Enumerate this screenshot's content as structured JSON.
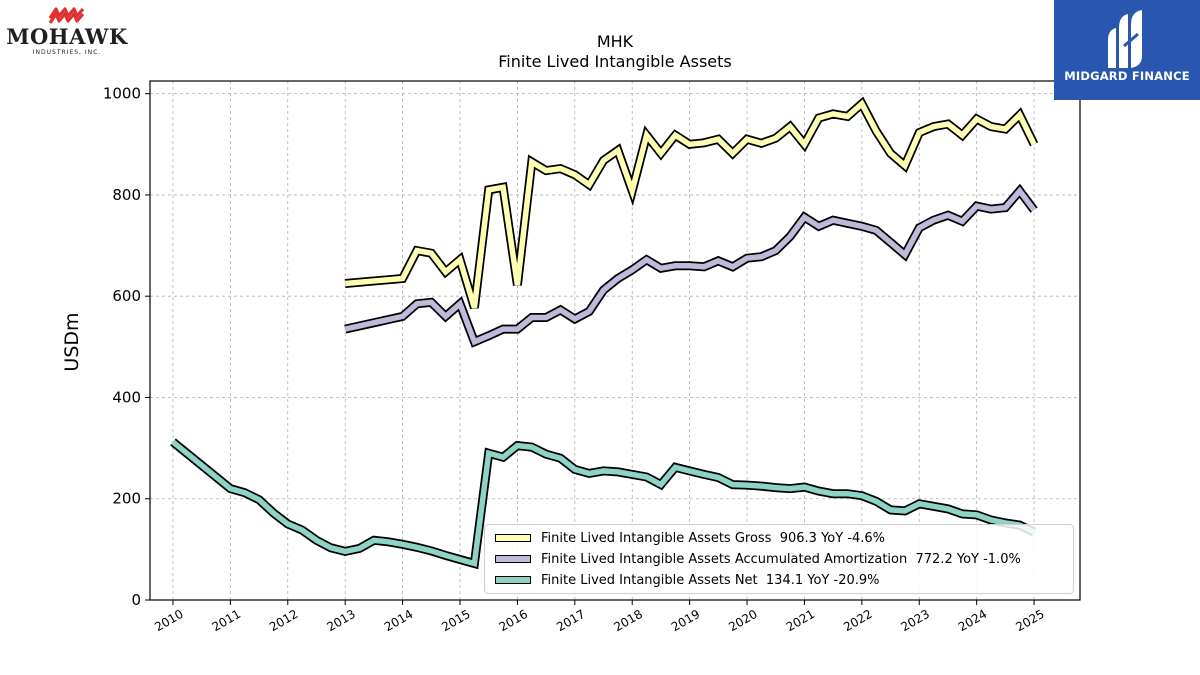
{
  "branding": {
    "company_logo_text": "MOHAWK",
    "company_logo_subtext": "INDUSTRIES, INC.",
    "provider_logo_text": "MIDGARD FINANCE"
  },
  "chart_data": {
    "type": "line",
    "title": "MHK",
    "subtitle": "Finite Lived Intangible Assets",
    "xlabel": "",
    "ylabel": "USDm",
    "xlim": [
      2009.6,
      2025.8
    ],
    "ylim": [
      0,
      1025
    ],
    "x_ticks": [
      2010,
      2011,
      2012,
      2013,
      2014,
      2015,
      2016,
      2017,
      2018,
      2019,
      2020,
      2021,
      2022,
      2023,
      2024,
      2025
    ],
    "y_ticks": [
      0,
      200,
      400,
      600,
      800,
      1000
    ],
    "grid": true,
    "legend_position": "lower-right",
    "series": [
      {
        "name": "Finite Lived Intangible Assets Gross",
        "legend_label": "Finite Lived Intangible Assets Gross  906.3 YoY -4.6%",
        "color": "#ffffb3",
        "points": [
          [
            2013.0,
            625
          ],
          [
            2014.0,
            635
          ],
          [
            2014.25,
            690
          ],
          [
            2014.5,
            685
          ],
          [
            2014.75,
            648
          ],
          [
            2015.0,
            672
          ],
          [
            2015.25,
            577
          ],
          [
            2015.5,
            810
          ],
          [
            2015.75,
            815
          ],
          [
            2016.0,
            622
          ],
          [
            2016.25,
            865
          ],
          [
            2016.5,
            848
          ],
          [
            2016.75,
            852
          ],
          [
            2017.0,
            840
          ],
          [
            2017.25,
            820
          ],
          [
            2017.5,
            868
          ],
          [
            2017.75,
            888
          ],
          [
            2018.0,
            808
          ],
          [
            2018.25,
            918
          ],
          [
            2018.5,
            882
          ],
          [
            2018.75,
            918
          ],
          [
            2019.0,
            900
          ],
          [
            2019.25,
            903
          ],
          [
            2019.5,
            910
          ],
          [
            2019.75,
            882
          ],
          [
            2020.0,
            910
          ],
          [
            2020.25,
            902
          ],
          [
            2020.5,
            912
          ],
          [
            2020.75,
            935
          ],
          [
            2021.0,
            900
          ],
          [
            2021.25,
            952
          ],
          [
            2021.5,
            960
          ],
          [
            2021.75,
            955
          ],
          [
            2022.0,
            980
          ],
          [
            2022.25,
            926
          ],
          [
            2022.5,
            882
          ],
          [
            2022.75,
            858
          ],
          [
            2023.0,
            923
          ],
          [
            2023.25,
            935
          ],
          [
            2023.5,
            940
          ],
          [
            2023.75,
            918
          ],
          [
            2024.0,
            950
          ],
          [
            2024.25,
            935
          ],
          [
            2024.5,
            930
          ],
          [
            2024.75,
            958
          ],
          [
            2025.0,
            900
          ]
        ]
      },
      {
        "name": "Finite Lived Intangible Assets Accumulated Amortization",
        "legend_label": "Finite Lived Intangible Assets Accumulated Amortization  772.2 YoY -1.0%",
        "color": "#bebada",
        "points": [
          [
            2013.0,
            535
          ],
          [
            2014.0,
            560
          ],
          [
            2014.25,
            585
          ],
          [
            2014.5,
            588
          ],
          [
            2014.75,
            560
          ],
          [
            2015.0,
            585
          ],
          [
            2015.25,
            510
          ],
          [
            2015.5,
            522
          ],
          [
            2015.75,
            535
          ],
          [
            2016.0,
            535
          ],
          [
            2016.25,
            558
          ],
          [
            2016.5,
            558
          ],
          [
            2016.75,
            573
          ],
          [
            2017.0,
            555
          ],
          [
            2017.25,
            570
          ],
          [
            2017.5,
            612
          ],
          [
            2017.75,
            635
          ],
          [
            2018.0,
            652
          ],
          [
            2018.25,
            672
          ],
          [
            2018.5,
            655
          ],
          [
            2018.75,
            660
          ],
          [
            2019.0,
            660
          ],
          [
            2019.25,
            658
          ],
          [
            2019.5,
            670
          ],
          [
            2019.75,
            658
          ],
          [
            2020.0,
            675
          ],
          [
            2020.25,
            678
          ],
          [
            2020.5,
            690
          ],
          [
            2020.75,
            718
          ],
          [
            2021.0,
            756
          ],
          [
            2021.25,
            738
          ],
          [
            2021.5,
            750
          ],
          [
            2021.75,
            744
          ],
          [
            2022.0,
            738
          ],
          [
            2022.25,
            730
          ],
          [
            2022.5,
            706
          ],
          [
            2022.75,
            682
          ],
          [
            2023.0,
            735
          ],
          [
            2023.25,
            750
          ],
          [
            2023.5,
            760
          ],
          [
            2023.75,
            748
          ],
          [
            2024.0,
            778
          ],
          [
            2024.25,
            772
          ],
          [
            2024.5,
            775
          ],
          [
            2024.75,
            808
          ],
          [
            2025.0,
            770
          ]
        ]
      },
      {
        "name": "Finite Lived Intangible Assets Net",
        "legend_label": "Finite Lived Intangible Assets Net  134.1 YoY -20.9%",
        "color": "#8dd3c7",
        "points": [
          [
            2010.0,
            312
          ],
          [
            2011.0,
            220
          ],
          [
            2011.25,
            212
          ],
          [
            2011.5,
            198
          ],
          [
            2011.75,
            172
          ],
          [
            2012.0,
            150
          ],
          [
            2012.25,
            138
          ],
          [
            2012.5,
            118
          ],
          [
            2012.75,
            103
          ],
          [
            2013.0,
            96
          ],
          [
            2013.25,
            102
          ],
          [
            2013.5,
            118
          ],
          [
            2013.75,
            115
          ],
          [
            2014.0,
            110
          ],
          [
            2014.25,
            104
          ],
          [
            2014.5,
            97
          ],
          [
            2014.75,
            88
          ],
          [
            2015.0,
            80
          ],
          [
            2015.25,
            72
          ],
          [
            2015.5,
            290
          ],
          [
            2015.75,
            282
          ],
          [
            2016.0,
            305
          ],
          [
            2016.25,
            302
          ],
          [
            2016.5,
            288
          ],
          [
            2016.75,
            280
          ],
          [
            2017.0,
            258
          ],
          [
            2017.25,
            250
          ],
          [
            2017.5,
            255
          ],
          [
            2017.75,
            253
          ],
          [
            2018.0,
            248
          ],
          [
            2018.25,
            243
          ],
          [
            2018.5,
            228
          ],
          [
            2018.75,
            262
          ],
          [
            2019.0,
            255
          ],
          [
            2019.25,
            248
          ],
          [
            2019.5,
            242
          ],
          [
            2019.75,
            228
          ],
          [
            2020.0,
            227
          ],
          [
            2020.25,
            225
          ],
          [
            2020.5,
            222
          ],
          [
            2020.75,
            220
          ],
          [
            2021.0,
            223
          ],
          [
            2021.25,
            215
          ],
          [
            2021.5,
            210
          ],
          [
            2021.75,
            210
          ],
          [
            2022.0,
            206
          ],
          [
            2022.25,
            195
          ],
          [
            2022.5,
            178
          ],
          [
            2022.75,
            176
          ],
          [
            2023.0,
            190
          ],
          [
            2023.25,
            185
          ],
          [
            2023.5,
            180
          ],
          [
            2023.75,
            170
          ],
          [
            2024.0,
            168
          ],
          [
            2024.25,
            158
          ],
          [
            2024.5,
            152
          ],
          [
            2024.75,
            148
          ],
          [
            2025.0,
            134
          ]
        ]
      }
    ]
  }
}
